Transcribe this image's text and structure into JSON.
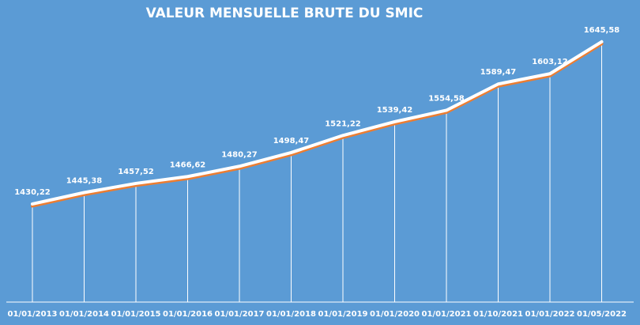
{
  "chart_data": {
    "type": "line",
    "title": "VALEUR MENSUELLE BRUTE DU SMIC",
    "xlabel": "",
    "ylabel": "",
    "categories": [
      "01/01/2013",
      "01/01/2014",
      "01/01/2015",
      "01/01/2016",
      "01/01/2017",
      "01/01/2018",
      "01/01/2019",
      "01/01/2020",
      "01/01/2021",
      "01/10/2021",
      "01/01/2022",
      "01/05/2022"
    ],
    "values": [
      1430.22,
      1445.38,
      1457.52,
      1466.62,
      1480.27,
      1498.47,
      1521.22,
      1539.42,
      1554.58,
      1589.47,
      1603.12,
      1645.58
    ],
    "value_labels": [
      "1430,22",
      "1445,38",
      "1457,52",
      "1466,62",
      "1480,27",
      "1498,47",
      "1521,22",
      "1539,42",
      "1554,58",
      "1589,47",
      "1603,12",
      "1645,58"
    ],
    "ylim": [
      1300,
      1680
    ],
    "grid": false,
    "drop_lines": true,
    "line_color": "#ffffff",
    "shadow_color": "#ed7d31",
    "background_color": "#5b9bd5"
  }
}
